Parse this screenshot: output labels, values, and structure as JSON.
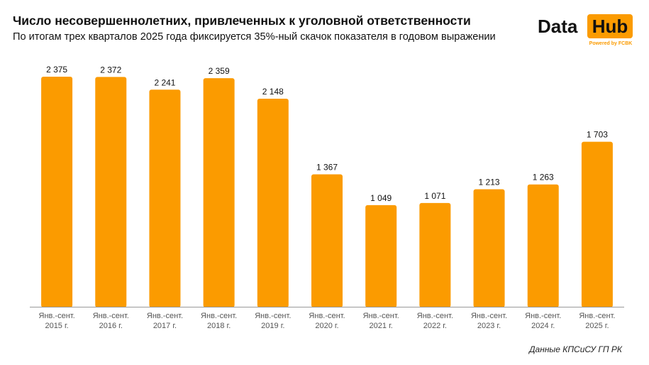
{
  "title": "Число несовершеннолетних, привлеченных к уголовной ответственности",
  "subtitle": "По итогам трех кварталов 2025 года фиксируется 35%-ный скачок показателя в годовом выражении",
  "logo": {
    "word1": "Data",
    "word2": "Hub",
    "tagline": "Powered by FCBK"
  },
  "source": "Данные КПСиСУ ГП РК",
  "colors": {
    "bar": "#fb9b00",
    "axis": "#999999",
    "text": "#111111"
  },
  "chart_data": {
    "type": "bar",
    "categories": [
      [
        "Янв.-сент.",
        "2015 г."
      ],
      [
        "Янв.-сент.",
        "2016 г."
      ],
      [
        "Янв.-сент.",
        "2017 г."
      ],
      [
        "Янв.-сент.",
        "2018 г."
      ],
      [
        "Янв.-сент.",
        "2019 г."
      ],
      [
        "Янв.-сент.",
        "2020 г."
      ],
      [
        "Янв.-сент.",
        "2021 г."
      ],
      [
        "Янв.-сент.",
        "2022 г."
      ],
      [
        "Янв.-сент.",
        "2023 г."
      ],
      [
        "Янв.-сент.",
        "2024 г."
      ],
      [
        "Янв.-сент.",
        "2025 г."
      ]
    ],
    "values": [
      2375,
      2372,
      2241,
      2359,
      2148,
      1367,
      1049,
      1071,
      1213,
      1263,
      1703
    ],
    "data_labels": [
      "2 375",
      "2 372",
      "2 241",
      "2 359",
      "2 148",
      "1 367",
      "1 049",
      "1 071",
      "1 213",
      "1 263",
      "1 703"
    ],
    "ylim": [
      0,
      2375
    ],
    "grid": false,
    "legend": "none"
  }
}
